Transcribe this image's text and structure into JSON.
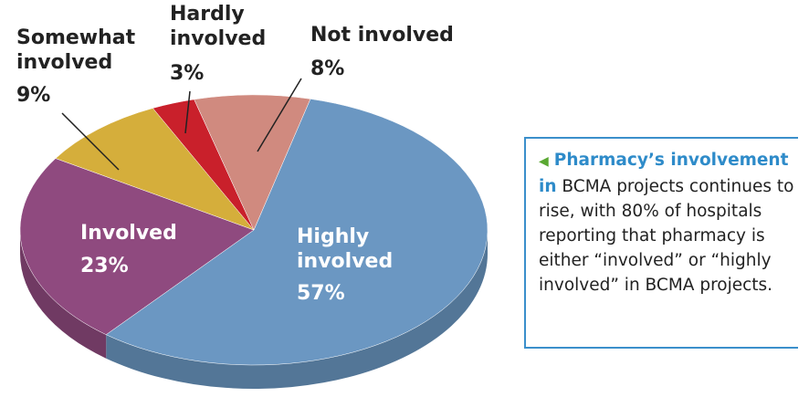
{
  "chart_data": {
    "type": "pie",
    "categories": [
      "Highly involved",
      "Involved",
      "Somewhat involved",
      "Hardly involved",
      "Not involved"
    ],
    "values": [
      57,
      23,
      9,
      3,
      8
    ],
    "value_labels": [
      "57%",
      "23%",
      "9%",
      "3%",
      "8%"
    ],
    "colors": [
      "#6b97c2",
      "#8f4a7f",
      "#d5ae3b",
      "#c9202b",
      "#d08a7f"
    ]
  },
  "caption": {
    "lead": "Pharmacy’s involvement in",
    "body": "BCMA projects continues to rise, with 80% of hospitals reporting that pharmacy is either “involved” or “highly involved” in BCMA projects."
  }
}
